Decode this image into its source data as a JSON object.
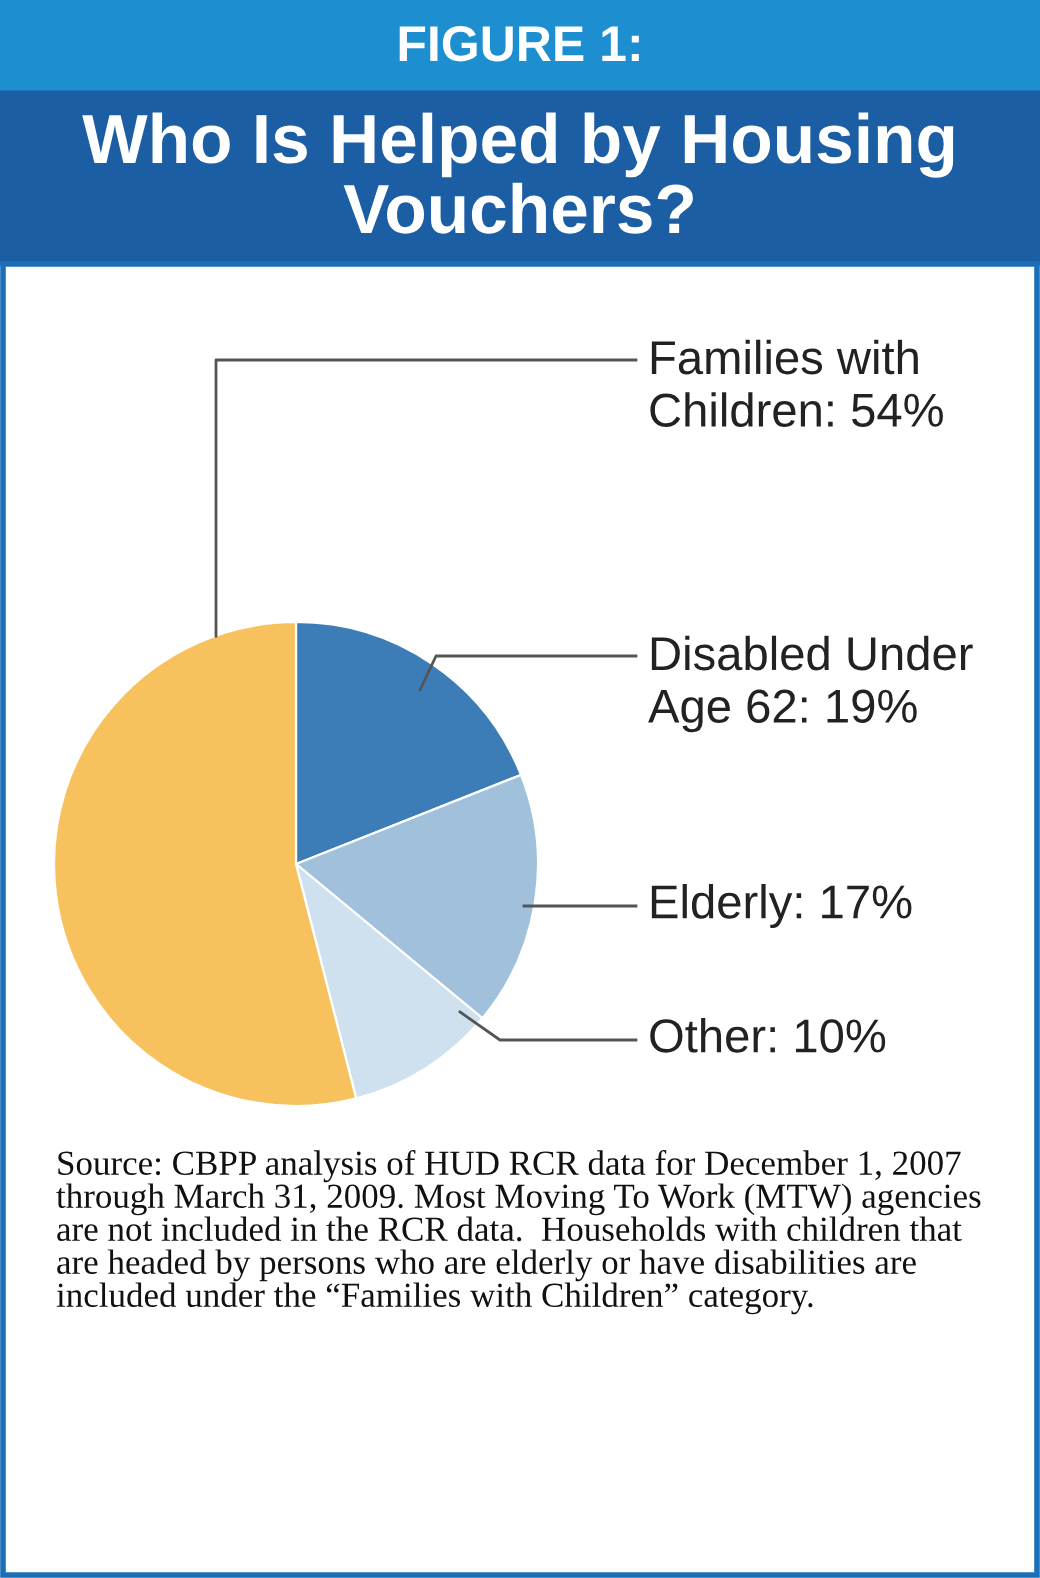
{
  "chart_data": {
    "type": "pie",
    "title": "FIGURE 1:",
    "subtitle": "Who Is Helped by Housing Vouchers?",
    "categories": [
      "Disabled Under Age 62",
      "Elderly",
      "Other",
      "Families with Children"
    ],
    "values": [
      19,
      17,
      10,
      54
    ],
    "value_labels": [
      "19%",
      "17%",
      "10%",
      "54%"
    ],
    "colors": [
      "#3c7db7",
      "#a0c0dc",
      "#cfe1ef",
      "#f7c25e"
    ],
    "annotations": [
      "Source: CBPP analysis of HUD RCR data for December 1, 2007 through March 31, 2009. Most Moving To Work (MTW) agencies are not included in the RCR data.  Households with children that are headed by persons who are elderly or have disabilities are included under the “Families with Children” category."
    ]
  }
}
